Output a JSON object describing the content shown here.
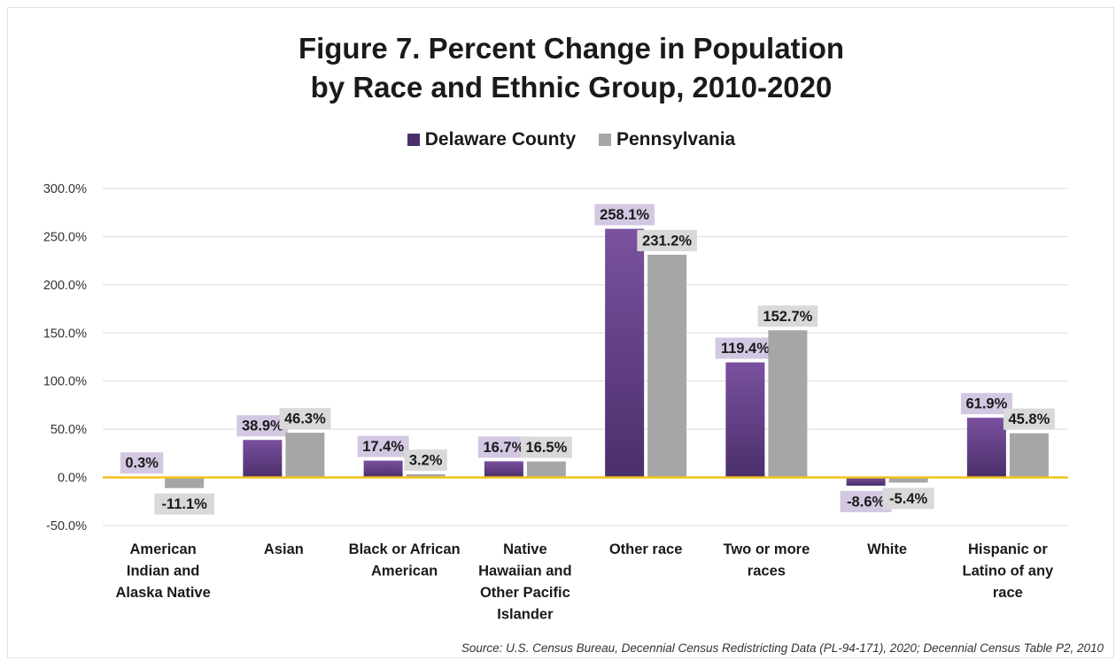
{
  "title_line1": "Figure 7. Percent Change in Population",
  "title_line2": "by Race and Ethnic Group, 2010-2020",
  "source": "Source: U.S. Census Bureau, Decennial Census Redistricting Data (PL-94-171), 2020; Decennial Census Table P2, 2010",
  "colors": {
    "delaware_top": "#7a519f",
    "delaware_bottom": "#4a2f6a",
    "delaware_label_bg": "#d3c7e2",
    "pennsylvania": "#a6a6a6",
    "pennsylvania_label_bg": "#d9d9d9",
    "zero_line": "#f2c21b",
    "gridline": "#d9d9d9"
  },
  "chart_data": {
    "type": "bar",
    "categories": [
      [
        "American",
        "Indian and",
        "Alaska Native"
      ],
      [
        "Asian"
      ],
      [
        "Black or African",
        "American"
      ],
      [
        "Native",
        "Hawaiian and",
        "Other Pacific",
        "Islander"
      ],
      [
        "Other race"
      ],
      [
        "Two or more",
        "races"
      ],
      [
        "White"
      ],
      [
        "Hispanic or",
        "Latino of any",
        "race"
      ]
    ],
    "series": [
      {
        "name": "Delaware County",
        "values": [
          0.3,
          38.9,
          17.4,
          16.7,
          258.1,
          119.4,
          -8.6,
          61.9
        ],
        "labels": [
          "0.3%",
          "38.9%",
          "17.4%",
          "16.7%",
          "258.1%",
          "119.4%",
          "-8.6%",
          "61.9%"
        ]
      },
      {
        "name": "Pennsylvania",
        "values": [
          -11.1,
          46.3,
          3.2,
          16.5,
          231.2,
          152.7,
          -5.4,
          45.8
        ],
        "labels": [
          "-11.1%",
          "46.3%",
          "3.2%",
          "16.5%",
          "231.2%",
          "152.7%",
          "-5.4%",
          "45.8%"
        ]
      }
    ],
    "ylim": [
      -50,
      300
    ],
    "yticks": [
      300,
      250,
      200,
      150,
      100,
      50,
      0,
      -50
    ],
    "ytick_labels": [
      "300.0%",
      "250.0%",
      "200.0%",
      "150.0%",
      "100.0%",
      "50.0%",
      "0.0%",
      "-50.0%"
    ],
    "grid": true,
    "legend_position": "top-center"
  }
}
